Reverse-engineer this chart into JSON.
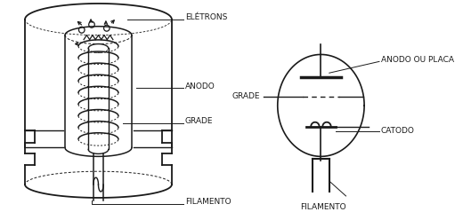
{
  "bg_color": "#ffffff",
  "line_color": "#1a1a1a",
  "labels": {
    "eletrons": "ELÉTRONS",
    "anodo": "ANODO",
    "grade": "GRADE",
    "filamento_left": "FILAMENTO",
    "anodo_ou_placa": "ANODO OU PLACA",
    "grade_right": "GRADE",
    "catodo": "CATODO",
    "filamento_right": "FILAMENTO"
  },
  "font_size": 6.5,
  "fig_width": 5.2,
  "fig_height": 2.39,
  "dpi": 100
}
